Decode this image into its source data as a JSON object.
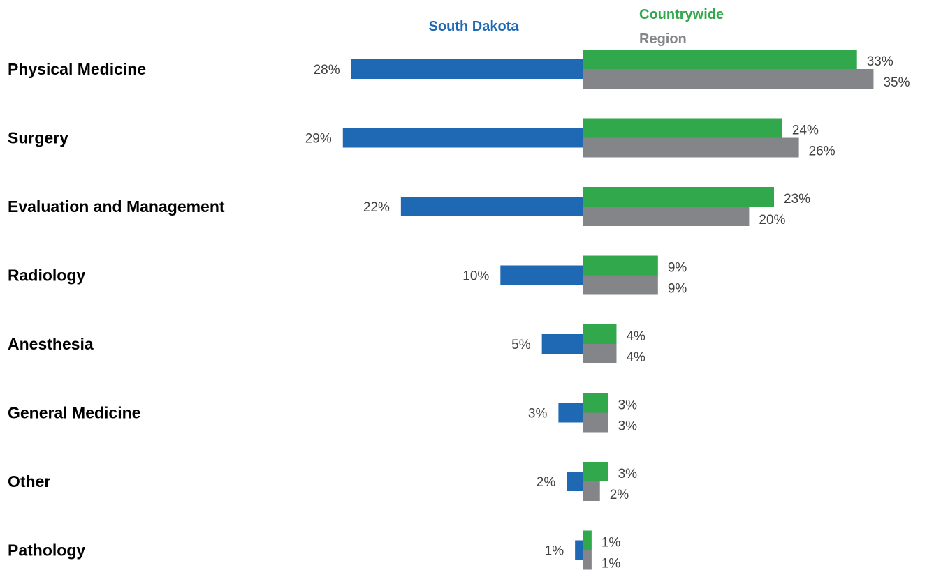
{
  "chart_data": {
    "type": "bar",
    "orientation": "horizontal-diverging",
    "categories": [
      "Physical Medicine",
      "Surgery",
      "Evaluation and Management",
      "Radiology",
      "Anesthesia",
      "General Medicine",
      "Other",
      "Pathology"
    ],
    "series": [
      {
        "name": "South Dakota",
        "color": "#1f69b4",
        "values": [
          28,
          29,
          22,
          10,
          5,
          3,
          2,
          1
        ],
        "labels": [
          "28%",
          "29%",
          "22%",
          "10%",
          "5%",
          "3%",
          "2%",
          "1%"
        ]
      },
      {
        "name": "Countrywide",
        "color": "#31a84b",
        "values": [
          33,
          24,
          23,
          9,
          4,
          3,
          3,
          1
        ],
        "labels": [
          "33%",
          "24%",
          "23%",
          "9%",
          "4%",
          "3%",
          "3%",
          "1%"
        ]
      },
      {
        "name": "Region",
        "color": "#838588",
        "values": [
          35,
          26,
          20,
          9,
          4,
          3,
          2,
          1
        ],
        "labels": [
          "35%",
          "26%",
          "20%",
          "9%",
          "4%",
          "3%",
          "2%",
          "1%"
        ]
      }
    ],
    "unit": "%",
    "legend_placement": "top",
    "grid": false
  }
}
